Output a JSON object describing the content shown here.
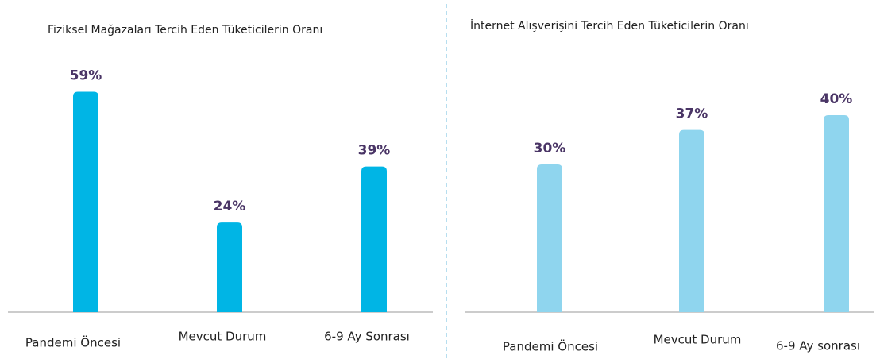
{
  "chart_data": [
    {
      "type": "bar",
      "title": "Fiziksel Mağazaları Tercih  Eden Tüketicilerin Oranı",
      "categories": [
        "Pandemi Öncesi",
        "Mevcut Durum",
        "6-9 Ay Sonrası"
      ],
      "values": [
        59,
        24,
        39
      ],
      "value_labels": [
        "59%",
        "24%",
        "39%"
      ],
      "color": "#00b5e5",
      "ylim": [
        0,
        64
      ]
    },
    {
      "type": "bar",
      "title": "İnternet Alışverişini Tercih Eden Tüketicilerin Oranı",
      "categories": [
        "Pandemi Öncesi",
        "Mevcut Durum",
        "6-9 Ay sonrası"
      ],
      "values": [
        30,
        37,
        40
      ],
      "value_labels": [
        "30%",
        "37%",
        "40%"
      ],
      "color": "#8fd5ee",
      "ylim": [
        0,
        50
      ]
    }
  ]
}
